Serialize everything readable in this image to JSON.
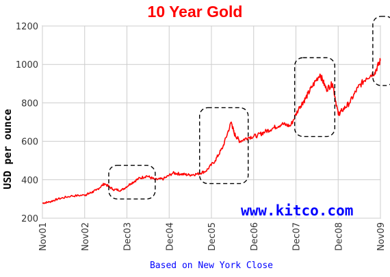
{
  "chart_data": {
    "type": "line",
    "title": "10 Year Gold",
    "ylabel": "USD per ounce",
    "xlabel": "Based on New York Close",
    "watermark": "www.kitco.com",
    "ylim": [
      200,
      1200
    ],
    "grid": true,
    "y_ticks": [
      "200",
      "400",
      "600",
      "800",
      "1000",
      "1200"
    ],
    "x_ticks": [
      "Nov01",
      "Nov02",
      "Dec03",
      "Dec04",
      "Dec05",
      "Dec06",
      "Dec07",
      "Dec08",
      "Nov09"
    ],
    "colors": {
      "line": "#ff0000",
      "title": "#ff0000",
      "footer": "#0000ff",
      "watermark": "#0000ff",
      "grid": "#cccccc"
    },
    "series": [
      {
        "x": [
          2001.83,
          2002.0,
          2002.2,
          2002.5,
          2002.83,
          2002.95,
          2003.1,
          2003.3,
          2003.5,
          2003.7,
          2003.92,
          2004.1,
          2004.3,
          2004.5,
          2004.7,
          2004.92,
          2005.1,
          2005.3,
          2005.5,
          2005.7,
          2005.92,
          2006.1,
          2006.3,
          2006.37,
          2006.5,
          2006.7,
          2006.92,
          2007.1,
          2007.3,
          2007.5,
          2007.7,
          2007.92,
          2008.05,
          2008.2,
          2008.4,
          2008.55,
          2008.7,
          2008.83,
          2008.92,
          2009.1,
          2009.3,
          2009.5,
          2009.7,
          2009.83
        ],
        "values": [
          278,
          285,
          300,
          315,
          320,
          330,
          345,
          380,
          350,
          345,
          380,
          405,
          420,
          400,
          405,
          435,
          430,
          425,
          430,
          445,
          500,
          570,
          700,
          640,
          600,
          620,
          630,
          650,
          670,
          690,
          680,
          780,
          820,
          880,
          950,
          870,
          900,
          740,
          760,
          800,
          880,
          930,
          960,
          1020
        ]
      }
    ],
    "annotations": [
      {
        "shape": "dashed-rounded-box",
        "x_range": [
          2003.4,
          2004.5
        ],
        "y_range": [
          300,
          475
        ]
      },
      {
        "shape": "dashed-rounded-box",
        "x_range": [
          2005.55,
          2006.7
        ],
        "y_range": [
          380,
          775
        ]
      },
      {
        "shape": "dashed-rounded-box",
        "x_range": [
          2007.8,
          2008.75
        ],
        "y_range": [
          625,
          1035
        ]
      },
      {
        "shape": "dashed-rounded-box",
        "x_range": [
          2009.65,
          2010.15
        ],
        "y_range": [
          890,
          1250
        ]
      }
    ]
  }
}
